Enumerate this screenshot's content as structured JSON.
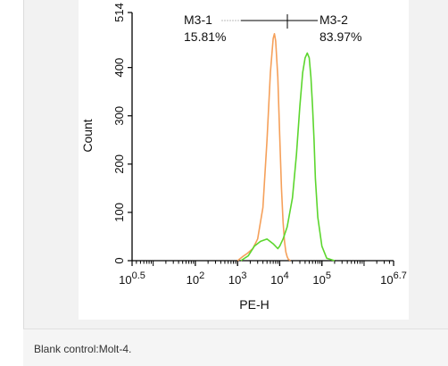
{
  "caption": "Blank control:Molt-4.",
  "chart_data": {
    "type": "line",
    "title_fragment": "",
    "xlabel": "PE-H",
    "ylabel": "Count",
    "x_scale": "log",
    "xlim": [
      3.16,
      5000000
    ],
    "ylim": [
      0,
      514
    ],
    "y_ticks": [
      "0",
      "100",
      "200",
      "300",
      "400",
      "514"
    ],
    "x_ticks": [
      {
        "base": "10",
        "exp": "0.5"
      },
      {
        "base": "10",
        "exp": "2"
      },
      {
        "base": "10",
        "exp": "3"
      },
      {
        "base": "10",
        "exp": "4"
      },
      {
        "base": "10",
        "exp": "5"
      },
      {
        "base": "10",
        "exp": "6.7"
      }
    ],
    "gates": [
      {
        "name": "M3-1",
        "percent": "15.81%"
      },
      {
        "name": "M3-2",
        "percent": "83.97%"
      }
    ],
    "series": [
      {
        "color": "#f5a05a",
        "x": [
          1000,
          1300,
          1700,
          2300,
          3000,
          4000,
          5000,
          6000,
          7000,
          7500,
          8000,
          9000,
          10000,
          11000,
          12000,
          13000,
          14000,
          15000,
          16000,
          18000
        ],
        "y": [
          0,
          8,
          15,
          25,
          45,
          110,
          250,
          390,
          460,
          470,
          455,
          380,
          260,
          150,
          80,
          40,
          18,
          8,
          3,
          0
        ]
      },
      {
        "color": "#5cd62e",
        "x": [
          1200,
          1800,
          2500,
          3500,
          5000,
          7000,
          9000,
          10000,
          12000,
          15000,
          20000,
          25000,
          30000,
          35000,
          40000,
          45000,
          50000,
          55000,
          60000,
          65000,
          70000,
          80000,
          100000,
          130000,
          200000
        ],
        "y": [
          0,
          10,
          30,
          40,
          45,
          35,
          25,
          30,
          45,
          70,
          130,
          220,
          320,
          390,
          420,
          430,
          420,
          380,
          320,
          250,
          170,
          90,
          30,
          5,
          0
        ]
      }
    ]
  }
}
